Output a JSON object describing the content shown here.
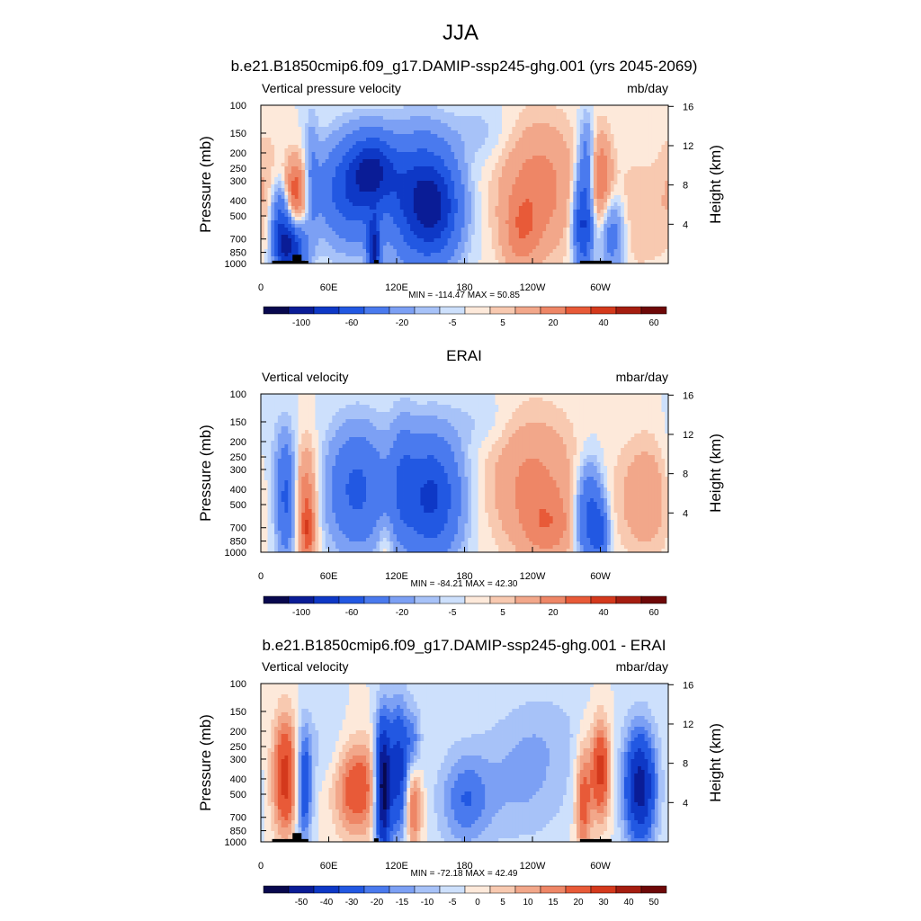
{
  "main_title": "JJA",
  "colors": {
    "palette": [
      "#08084e",
      "#0a1c96",
      "#0e38c6",
      "#2258e2",
      "#4a7aee",
      "#7ca0f4",
      "#a7c2f8",
      "#cde0fc",
      "#fde9da",
      "#f8c9b0",
      "#f2a78a",
      "#ee8666",
      "#e85a38",
      "#d4391c",
      "#a51d10",
      "#6e0808"
    ],
    "land": "#000000"
  },
  "chart_data": [
    {
      "type": "heatmap",
      "title": "b.e21.B1850cmip6.f09_g17.DAMIP-ssp245-ghg.001 (yrs 2045-2069)",
      "left_label": "Vertical pressure velocity",
      "units": "mb/day",
      "ylabel": "Pressure (mb)",
      "ylabel_right": "Height (km)",
      "x_ticks": [
        "0",
        "60E",
        "120E",
        "180",
        "120W",
        "60W"
      ],
      "y_ticks": [
        "100",
        "150",
        "200",
        "250",
        "300",
        "400",
        "500",
        "700",
        "850",
        "1000"
      ],
      "height_ticks": [
        "16",
        "12",
        "8",
        "4"
      ],
      "stats": "MIN = -114.47  MAX =  50.85",
      "colorbar_labels": [
        "-100",
        "-60",
        "-20",
        "-5",
        "5",
        "20",
        "40",
        "60"
      ],
      "colorbar_levels": [
        -120,
        -100,
        -80,
        -60,
        -40,
        -20,
        -10,
        -5,
        0,
        5,
        10,
        20,
        30,
        40,
        50,
        60
      ],
      "min": -114.47,
      "max": 50.85,
      "features": [
        {
          "lon": 30,
          "p": 350,
          "wl": 8,
          "wp": 0.35,
          "amp": 40
        },
        {
          "lon": 18,
          "p": 600,
          "wl": 6,
          "wp": 0.45,
          "amp": -60
        },
        {
          "lon": 28,
          "p": 800,
          "wl": 8,
          "wp": 0.25,
          "amp": -70
        },
        {
          "lon": 45,
          "p": 300,
          "wl": 4,
          "wp": 0.6,
          "amp": -20
        },
        {
          "lon": 80,
          "p": 350,
          "wl": 20,
          "wp": 0.5,
          "amp": -55
        },
        {
          "lon": 100,
          "p": 250,
          "wl": 14,
          "wp": 0.35,
          "amp": -60
        },
        {
          "lon": 100,
          "p": 820,
          "wl": 4,
          "wp": 0.3,
          "amp": -80
        },
        {
          "lon": 140,
          "p": 400,
          "wl": 18,
          "wp": 0.6,
          "amp": -75
        },
        {
          "lon": 160,
          "p": 450,
          "wl": 14,
          "wp": 0.5,
          "amp": -40
        },
        {
          "lon": 245,
          "p": 330,
          "wl": 25,
          "wp": 0.7,
          "amp": 25
        },
        {
          "lon": 230,
          "p": 650,
          "wl": 12,
          "wp": 0.4,
          "amp": 18
        },
        {
          "lon": 285,
          "p": 550,
          "wl": 6,
          "wp": 0.5,
          "amp": -70
        },
        {
          "lon": 288,
          "p": 200,
          "wl": 5,
          "wp": 0.4,
          "amp": -25
        },
        {
          "lon": 300,
          "p": 300,
          "wl": 7,
          "wp": 0.5,
          "amp": 28
        },
        {
          "lon": 310,
          "p": 650,
          "wl": 8,
          "wp": 0.4,
          "amp": -35
        },
        {
          "lon": 330,
          "p": 500,
          "wl": 25,
          "wp": 0.6,
          "amp": 10
        },
        {
          "lon": 5,
          "p": 300,
          "wl": 10,
          "wp": 0.6,
          "amp": 8
        },
        {
          "lon": 195,
          "p": 150,
          "wl": 20,
          "wp": 0.3,
          "amp": -8
        }
      ],
      "land": [
        {
          "lon": [
            10,
            42
          ],
          "p": 960
        },
        {
          "lon": [
            28,
            36
          ],
          "p": 880
        },
        {
          "lon": [
            100,
            104
          ],
          "p": 950
        },
        {
          "lon": [
            282,
            310
          ],
          "p": 960
        }
      ]
    },
    {
      "type": "heatmap",
      "title": "ERAI",
      "left_label": "Vertical velocity",
      "units": "mbar/day",
      "ylabel": "Pressure (mb)",
      "ylabel_right": "Height (km)",
      "x_ticks": [
        "0",
        "60E",
        "120E",
        "180",
        "120W",
        "60W"
      ],
      "y_ticks": [
        "100",
        "150",
        "200",
        "250",
        "300",
        "400",
        "500",
        "700",
        "850",
        "1000"
      ],
      "height_ticks": [
        "16",
        "12",
        "8",
        "4"
      ],
      "stats": "MIN = -84.21  MAX =  42.30",
      "colorbar_labels": [
        "-100",
        "-60",
        "-20",
        "-5",
        "5",
        "20",
        "40",
        "60"
      ],
      "colorbar_levels": [
        -120,
        -100,
        -80,
        -60,
        -40,
        -20,
        -10,
        -5,
        0,
        5,
        10,
        20,
        30,
        40,
        50,
        60
      ],
      "min": -84.21,
      "max": 42.3,
      "features": [
        {
          "lon": 22,
          "p": 450,
          "wl": 6,
          "wp": 0.6,
          "amp": -45
        },
        {
          "lon": 40,
          "p": 500,
          "wl": 7,
          "wp": 0.6,
          "amp": 30
        },
        {
          "lon": 42,
          "p": 760,
          "wl": 4,
          "wp": 0.25,
          "amp": 20
        },
        {
          "lon": 85,
          "p": 400,
          "wl": 18,
          "wp": 0.6,
          "amp": -45
        },
        {
          "lon": 150,
          "p": 450,
          "wl": 18,
          "wp": 0.6,
          "amp": -65
        },
        {
          "lon": 125,
          "p": 350,
          "wl": 8,
          "wp": 0.6,
          "amp": -25
        },
        {
          "lon": 240,
          "p": 350,
          "wl": 28,
          "wp": 0.7,
          "amp": 22
        },
        {
          "lon": 255,
          "p": 700,
          "wl": 18,
          "wp": 0.35,
          "amp": 18
        },
        {
          "lon": 290,
          "p": 600,
          "wl": 8,
          "wp": 0.5,
          "amp": -50
        },
        {
          "lon": 300,
          "p": 750,
          "wl": 5,
          "wp": 0.3,
          "amp": -35
        },
        {
          "lon": 340,
          "p": 450,
          "wl": 18,
          "wp": 0.6,
          "amp": 18
        },
        {
          "lon": 110,
          "p": 900,
          "wl": 5,
          "wp": 0.3,
          "amp": 10
        },
        {
          "lon": 195,
          "p": 150,
          "wl": 20,
          "wp": 0.3,
          "amp": -6
        },
        {
          "lon": 5,
          "p": 300,
          "wl": 8,
          "wp": 0.7,
          "amp": -6
        }
      ],
      "land": []
    },
    {
      "type": "heatmap",
      "title": "b.e21.B1850cmip6.f09_g17.DAMIP-ssp245-ghg.001 - ERAI",
      "left_label": "Vertical velocity",
      "units": "mbar/day",
      "ylabel": "Pressure (mb)",
      "ylabel_right": "Height (km)",
      "x_ticks": [
        "0",
        "60E",
        "120E",
        "180",
        "120W",
        "60W"
      ],
      "y_ticks": [
        "100",
        "150",
        "200",
        "250",
        "300",
        "400",
        "500",
        "700",
        "850",
        "1000"
      ],
      "height_ticks": [
        "16",
        "12",
        "8",
        "4"
      ],
      "stats": "MIN = -72.18  MAX =  42.49",
      "colorbar_labels": [
        "-50",
        "-40",
        "-30",
        "-20",
        "-15",
        "-10",
        "-5",
        "0",
        "5",
        "10",
        "15",
        "20",
        "30",
        "40",
        "50"
      ],
      "colorbar_levels": [
        -60,
        -50,
        -40,
        -30,
        -20,
        -15,
        -10,
        -5,
        0,
        5,
        10,
        15,
        20,
        30,
        40,
        50
      ],
      "min": -72.18,
      "max": 42.49,
      "features": [
        {
          "lon": 22,
          "p": 380,
          "wl": 8,
          "wp": 0.6,
          "amp": 35
        },
        {
          "lon": 38,
          "p": 450,
          "wl": 5,
          "wp": 0.6,
          "amp": -30
        },
        {
          "lon": 85,
          "p": 450,
          "wl": 14,
          "wp": 0.5,
          "amp": 28
        },
        {
          "lon": 108,
          "p": 450,
          "wl": 5,
          "wp": 0.7,
          "amp": -60
        },
        {
          "lon": 135,
          "p": 550,
          "wl": 5,
          "wp": 0.5,
          "amp": 25
        },
        {
          "lon": 135,
          "p": 250,
          "wl": 5,
          "wp": 0.4,
          "amp": -20
        },
        {
          "lon": 122,
          "p": 350,
          "wl": 6,
          "wp": 0.7,
          "amp": -35
        },
        {
          "lon": 180,
          "p": 550,
          "wl": 16,
          "wp": 0.5,
          "amp": -18
        },
        {
          "lon": 230,
          "p": 450,
          "wl": 30,
          "wp": 0.6,
          "amp": -10
        },
        {
          "lon": 285,
          "p": 550,
          "wl": 5,
          "wp": 0.6,
          "amp": 25
        },
        {
          "lon": 300,
          "p": 350,
          "wl": 6,
          "wp": 0.5,
          "amp": 35
        },
        {
          "lon": 335,
          "p": 450,
          "wl": 10,
          "wp": 0.6,
          "amp": -45
        },
        {
          "lon": 60,
          "p": 250,
          "wl": 20,
          "wp": 0.4,
          "amp": -6
        },
        {
          "lon": 250,
          "p": 200,
          "wl": 30,
          "wp": 0.5,
          "amp": -6
        }
      ],
      "land": [
        {
          "lon": [
            10,
            42
          ],
          "p": 960
        },
        {
          "lon": [
            28,
            36
          ],
          "p": 880
        },
        {
          "lon": [
            100,
            104
          ],
          "p": 950
        },
        {
          "lon": [
            282,
            310
          ],
          "p": 960
        }
      ]
    }
  ]
}
